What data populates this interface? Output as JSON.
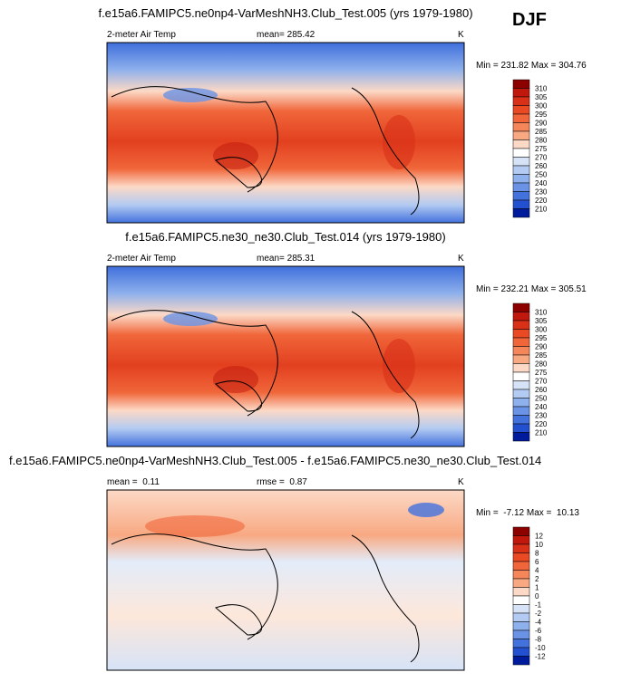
{
  "season": "DJF",
  "panels": [
    {
      "title": "f.e15a6.FAMIPC5.ne0np4-VarMeshNH3.Club_Test.005 (yrs 1979-1980)",
      "left": "2-meter Air Temp",
      "center": "mean= 285.42",
      "units": "K",
      "minmax": "Min = 231.82 Max = 304.76",
      "colorbar": {
        "labels": [
          310,
          305,
          300,
          295,
          290,
          285,
          280,
          275,
          270,
          260,
          250,
          240,
          230,
          220,
          210
        ],
        "colors": [
          "#8c0000",
          "#c0180c",
          "#d93018",
          "#e94a24",
          "#f0663a",
          "#f4865a",
          "#f8a982",
          "#fcd9c6",
          "#ffffff",
          "#d6e3f7",
          "#b3cbf2",
          "#8eb0ec",
          "#6a93e5",
          "#4472dd",
          "#2250cf",
          "#001a9c"
        ]
      }
    },
    {
      "title": "f.e15a6.FAMIPC5.ne30_ne30.Club_Test.014 (yrs 1979-1980)",
      "left": "2-meter Air Temp",
      "center": "mean= 285.31",
      "units": "K",
      "minmax": "Min = 232.21 Max = 305.51",
      "colorbar": {
        "labels": [
          310,
          305,
          300,
          295,
          290,
          285,
          280,
          275,
          270,
          260,
          250,
          240,
          230,
          220,
          210
        ],
        "colors": [
          "#8c0000",
          "#c0180c",
          "#d93018",
          "#e94a24",
          "#f0663a",
          "#f4865a",
          "#f8a982",
          "#fcd9c6",
          "#ffffff",
          "#d6e3f7",
          "#b3cbf2",
          "#8eb0ec",
          "#6a93e5",
          "#4472dd",
          "#2250cf",
          "#001a9c"
        ]
      }
    },
    {
      "title": "f.e15a6.FAMIPC5.ne0np4-VarMeshNH3.Club_Test.005 - f.e15a6.FAMIPC5.ne30_ne30.Club_Test.014",
      "left": "mean =  0.11",
      "center": "rmse =  0.87",
      "units": "K",
      "minmax": "Min =  -7.12 Max =  10.13",
      "colorbar": {
        "labels": [
          12,
          10,
          8,
          6,
          4,
          2,
          1,
          0,
          -1,
          -2,
          -4,
          -6,
          -8,
          -10,
          -12
        ],
        "colors": [
          "#8c0000",
          "#c0180c",
          "#d93018",
          "#e94a24",
          "#f0663a",
          "#f4865a",
          "#f8a982",
          "#fcd9c6",
          "#ffffff",
          "#d6e3f7",
          "#b3cbf2",
          "#8eb0ec",
          "#6a93e5",
          "#4472dd",
          "#2250cf",
          "#001a9c"
        ]
      }
    }
  ]
}
